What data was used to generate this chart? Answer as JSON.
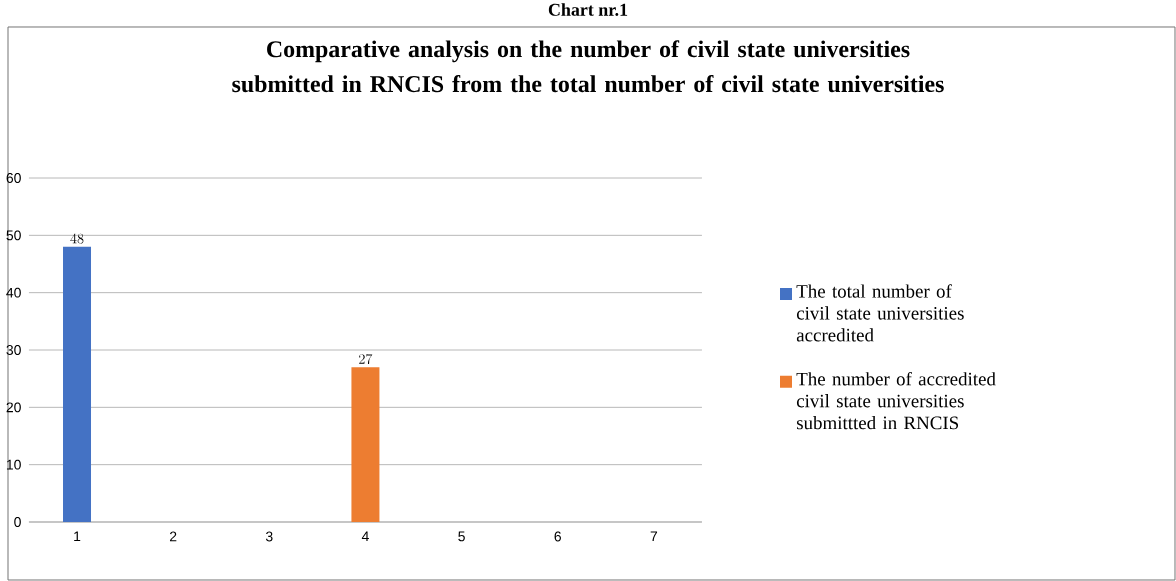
{
  "chart_data": {
    "type": "bar",
    "title": "Comparative analysis on the number of civil state universities submitted in RNCIS from the total number of civil state universities",
    "annotations": [
      "Chart nr.1"
    ],
    "categories": [
      "1",
      "2",
      "3",
      "4",
      "5",
      "6",
      "7"
    ],
    "series": [
      {
        "name": "The total number of civil state universities accredited",
        "color": "#4472c4",
        "values": [
          48,
          null,
          null,
          null,
          null,
          null,
          null
        ]
      },
      {
        "name": "The number of accredited civil state universities submittted in RNCIS",
        "color": "#ed7d31",
        "values": [
          null,
          null,
          null,
          27,
          null,
          null,
          null
        ]
      }
    ],
    "ylim": [
      0,
      60
    ],
    "yticks": [
      0,
      10,
      20,
      30,
      40,
      50,
      60
    ],
    "grid": "y",
    "legend": "right",
    "data_labels": true
  }
}
